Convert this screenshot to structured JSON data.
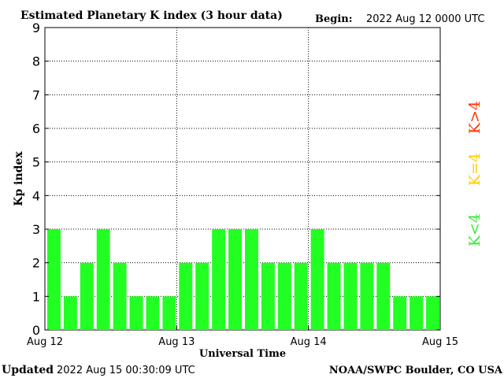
{
  "header": {
    "title": "Estimated Planetary K index (3 hour data)",
    "begin_label": "Begin:",
    "begin_value": "2022 Aug 12 0000 UTC"
  },
  "footer": {
    "updated_label": "Updated",
    "updated_value": "2022 Aug 15 00:30:09 UTC",
    "source": "NOAA/SWPC Boulder, CO USA"
  },
  "legend": [
    {
      "label": "K>4",
      "color": "#ff3300"
    },
    {
      "label": "K=4",
      "color": "#ffcc00"
    },
    {
      "label": "K<4",
      "color": "#33ee33"
    }
  ],
  "chart_data": {
    "type": "bar",
    "title": "Estimated Planetary K index (3 hour data)",
    "xlabel": "Universal Time",
    "ylabel": "Kp index",
    "ylim": [
      0,
      9
    ],
    "yticks": [
      0,
      1,
      2,
      3,
      4,
      5,
      6,
      7,
      8,
      9
    ],
    "x_tick_labels": [
      "Aug 12",
      "Aug 13",
      "Aug 14",
      "Aug 15"
    ],
    "bars_per_day": 8,
    "values": [
      3,
      1,
      2,
      3,
      2,
      1,
      1,
      1,
      2,
      2,
      3,
      3,
      3,
      2,
      2,
      2,
      3,
      2,
      2,
      2,
      2,
      1,
      1,
      1
    ],
    "bar_color": "#22ff22",
    "grid": true
  }
}
